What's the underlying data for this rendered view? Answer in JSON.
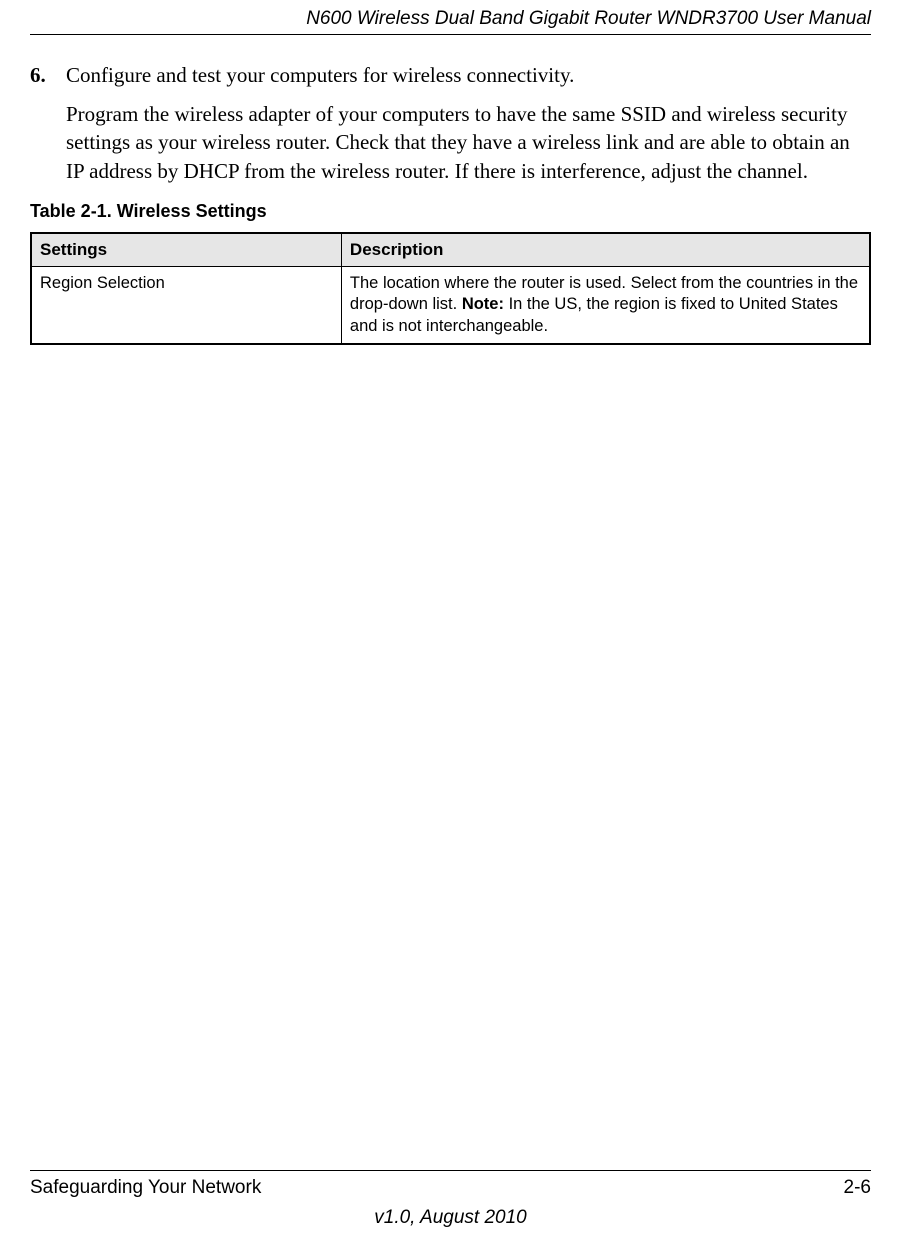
{
  "header": {
    "title": "N600 Wireless Dual Band Gigabit Router WNDR3700 User Manual"
  },
  "step": {
    "number": "6.",
    "heading": "Configure and test your computers for wireless connectivity.",
    "body": "Program the wireless adapter of your computers to have the same SSID and wireless security settings as your wireless router. Check that they have a wireless link and are able to obtain an IP address by DHCP from the wireless router. If there is interference, adjust the channel."
  },
  "table": {
    "caption": "Table 2-1.  Wireless Settings",
    "columns": [
      "Settings",
      "Description"
    ],
    "col_widths": [
      "37%",
      "63%"
    ],
    "header_bg": "#e6e6e6",
    "border_color": "#000000",
    "rows": [
      {
        "setting": "Region Selection",
        "description_pre": "The location where the router is used. Select from the countries in the drop-down list. ",
        "description_note_label": "Note:",
        "description_post": " In the US, the region is fixed to United States and is not interchangeable."
      }
    ]
  },
  "footer": {
    "section": "Safeguarding Your Network",
    "page": "2-6",
    "version": "v1.0, August 2010"
  },
  "typography": {
    "body_font": "Times New Roman",
    "ui_font": "Arial",
    "header_fontsize": 19,
    "body_fontsize": 21,
    "table_header_fontsize": 17,
    "table_cell_fontsize": 16.5,
    "caption_fontsize": 18
  },
  "colors": {
    "background": "#ffffff",
    "text": "#000000",
    "rule": "#000000"
  }
}
